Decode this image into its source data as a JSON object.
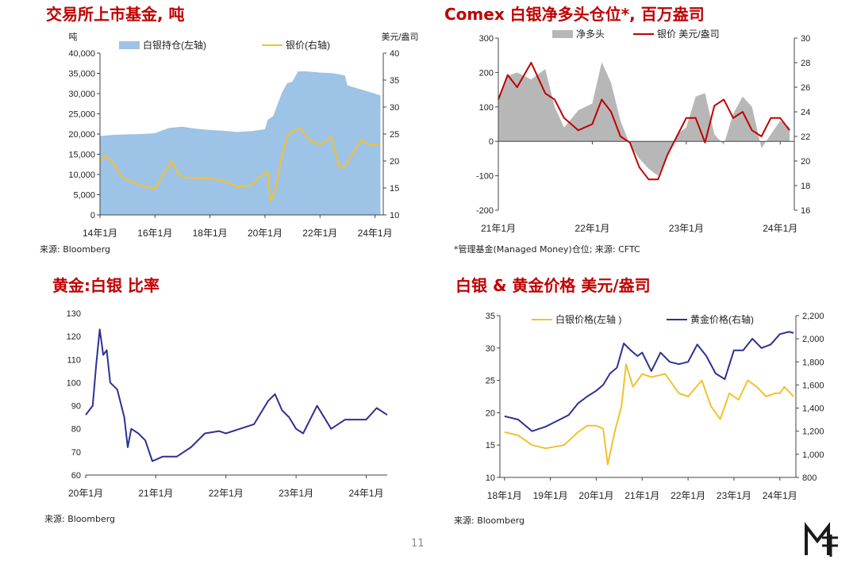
{
  "page_number": "11",
  "panels": [
    {
      "title": "交易所上市基金, 吨",
      "note": "来源: Bloomberg",
      "chart_data": {
        "type": "area",
        "left_unit": "吨",
        "right_unit": "美元/盎司",
        "x_ticks": [
          "14年1月",
          "16年1月",
          "18年1月",
          "20年1月",
          "22年1月",
          "24年1月"
        ],
        "y_left_ticks": [
          "0",
          "5,000",
          "10,000",
          "15,000",
          "20,000",
          "25,000",
          "30,000",
          "35,000",
          "40,000"
        ],
        "y_right_ticks": [
          "10",
          "15",
          "20",
          "25",
          "30",
          "35",
          "40"
        ],
        "ylim_left": [
          0,
          40000
        ],
        "ylim_right": [
          10,
          40
        ],
        "legend_position": "top",
        "series": [
          {
            "name": "白银持仓(左轴)",
            "type": "area",
            "axis": "left",
            "color": "#9dc3e6",
            "x": [
              2014.0,
              2014.5,
              2015.0,
              2015.5,
              2016.0,
              2016.5,
              2017.0,
              2017.5,
              2018.0,
              2018.5,
              2019.0,
              2019.5,
              2020.0,
              2020.1,
              2020.3,
              2020.6,
              2020.8,
              2021.0,
              2021.2,
              2021.5,
              2022.0,
              2022.5,
              2022.9,
              2023.0,
              2023.5,
              2024.0,
              2024.2
            ],
            "values": [
              19500,
              19800,
              19900,
              20000,
              20200,
              21500,
              21800,
              21300,
              21000,
              20800,
              20500,
              20700,
              21200,
              23500,
              24500,
              30000,
              32500,
              33000,
              35500,
              35500,
              35200,
              35000,
              34500,
              32000,
              31000,
              30000,
              29500
            ]
          },
          {
            "name": "银价(右轴)",
            "type": "line",
            "axis": "right",
            "color": "#f2c12e",
            "x": [
              2014.0,
              2014.2,
              2014.5,
              2014.8,
              2015.0,
              2015.5,
              2016.0,
              2016.3,
              2016.6,
              2016.8,
              2017.0,
              2017.5,
              2018.0,
              2018.5,
              2019.0,
              2019.5,
              2019.9,
              2020.1,
              2020.2,
              2020.4,
              2020.6,
              2020.8,
              2021.0,
              2021.3,
              2021.6,
              2022.0,
              2022.4,
              2022.7,
              2022.9,
              2023.2,
              2023.5,
              2023.8,
              2024.0,
              2024.2
            ],
            "values": [
              20,
              21,
              19.5,
              17,
              16.5,
              15.5,
              14.8,
              17.5,
              20,
              18,
              17,
              16.8,
              16.8,
              16.3,
              15.2,
              15.5,
              17.5,
              18,
              12.5,
              15,
              20.5,
              24.5,
              25.5,
              26,
              24,
              23,
              24.5,
              19,
              19,
              21.5,
              24,
              23,
              23,
              23
            ]
          }
        ]
      }
    },
    {
      "title": "Comex 白银净多头仓位*, 百万盎司",
      "note": "*管理基金(Managed Money)仓位;   来源: CFTC",
      "chart_data": {
        "type": "area",
        "x_ticks": [
          "21年1月",
          "22年1月",
          "23年1月",
          "24年1月"
        ],
        "y_left_ticks": [
          "-200",
          "-100",
          "0",
          "100",
          "200",
          "300"
        ],
        "y_right_ticks": [
          "16",
          "18",
          "20",
          "22",
          "24",
          "26",
          "28",
          "30"
        ],
        "ylim_left": [
          -200,
          300
        ],
        "ylim_right": [
          16,
          30
        ],
        "legend_position": "top",
        "series": [
          {
            "name": "净多头",
            "type": "area",
            "axis": "left",
            "color": "#b7b7b7",
            "x": [
              2021.0,
              2021.1,
              2021.2,
              2021.35,
              2021.5,
              2021.6,
              2021.7,
              2021.85,
              2022.0,
              2022.1,
              2022.2,
              2022.3,
              2022.4,
              2022.5,
              2022.6,
              2022.7,
              2022.8,
              2022.9,
              2023.0,
              2023.1,
              2023.2,
              2023.3,
              2023.4,
              2023.5,
              2023.6,
              2023.7,
              2023.8,
              2023.9,
              2024.0,
              2024.1
            ],
            "values": [
              130,
              190,
              200,
              180,
              210,
              100,
              40,
              90,
              110,
              230,
              170,
              60,
              -10,
              -50,
              -80,
              -100,
              -40,
              20,
              40,
              130,
              140,
              20,
              -10,
              80,
              130,
              100,
              -20,
              20,
              60,
              40
            ]
          },
          {
            "name": "银价 美元/盎司",
            "type": "line",
            "axis": "right",
            "color": "#c00000",
            "x": [
              2021.0,
              2021.1,
              2021.2,
              2021.35,
              2021.5,
              2021.6,
              2021.7,
              2021.85,
              2022.0,
              2022.1,
              2022.2,
              2022.3,
              2022.4,
              2022.5,
              2022.6,
              2022.7,
              2022.8,
              2022.9,
              2023.0,
              2023.1,
              2023.2,
              2023.3,
              2023.4,
              2023.5,
              2023.6,
              2023.7,
              2023.8,
              2023.9,
              2024.0,
              2024.1
            ],
            "values": [
              25,
              27,
              26,
              28,
              25.5,
              25,
              23.5,
              22.5,
              23,
              25,
              24,
              22,
              21.5,
              19.5,
              18.5,
              18.5,
              20.5,
              22,
              23.5,
              23.5,
              21.5,
              24.5,
              25,
              23.5,
              24,
              22.5,
              22,
              23.5,
              23.5,
              22.5
            ]
          }
        ]
      }
    },
    {
      "title": "黄金:白银 比率",
      "note": "来源: Bloomberg",
      "chart_data": {
        "type": "line",
        "x_ticks": [
          "20年1月",
          "21年1月",
          "22年1月",
          "23年1月",
          "24年1月"
        ],
        "y_left_ticks": [
          "60",
          "70",
          "80",
          "90",
          "100",
          "110",
          "120",
          "130"
        ],
        "ylim_left": [
          60,
          130
        ],
        "series": [
          {
            "name": "",
            "color": "#2e3191",
            "x": [
              2020.0,
              2020.1,
              2020.15,
              2020.2,
              2020.25,
              2020.3,
              2020.35,
              2020.45,
              2020.55,
              2020.6,
              2020.65,
              2020.75,
              2020.85,
              2020.95,
              2021.1,
              2021.3,
              2021.5,
              2021.7,
              2021.9,
              2022.0,
              2022.2,
              2022.4,
              2022.6,
              2022.7,
              2022.8,
              2022.9,
              2023.0,
              2023.1,
              2023.3,
              2023.5,
              2023.7,
              2023.9,
              2024.0,
              2024.15,
              2024.3
            ],
            "values": [
              86,
              90,
              108,
              123,
              112,
              114,
              100,
              97,
              85,
              72,
              80,
              78,
              75,
              66,
              68,
              68,
              72,
              78,
              79,
              78,
              80,
              82,
              92,
              95,
              88,
              85,
              80,
              78,
              90,
              80,
              84,
              84,
              84,
              89,
              86
            ]
          }
        ]
      }
    },
    {
      "title": "白银 & 黄金价格 美元/盎司",
      "note": "来源: Bloomberg",
      "chart_data": {
        "type": "line",
        "x_ticks": [
          "18年1月",
          "19年1月",
          "20年1月",
          "21年1月",
          "22年1月",
          "23年1月",
          "24年1月"
        ],
        "y_left_ticks": [
          "10",
          "15",
          "20",
          "25",
          "30",
          "35"
        ],
        "y_right_ticks": [
          "800",
          "1,000",
          "1,200",
          "1,400",
          "1,600",
          "1,800",
          "2,000",
          "2,200"
        ],
        "ylim_left": [
          10,
          35
        ],
        "ylim_right": [
          800,
          2200
        ],
        "legend_position": "top",
        "series": [
          {
            "name": "白银价格(左轴 )",
            "axis": "left",
            "color": "#f2c12e",
            "x": [
              2018.0,
              2018.3,
              2018.6,
              2018.9,
              2019.3,
              2019.6,
              2019.8,
              2020.0,
              2020.15,
              2020.25,
              2020.4,
              2020.55,
              2020.65,
              2020.8,
              2021.0,
              2021.2,
              2021.5,
              2021.8,
              2022.0,
              2022.3,
              2022.5,
              2022.7,
              2022.9,
              2023.1,
              2023.3,
              2023.5,
              2023.7,
              2023.9,
              2024.0,
              2024.1,
              2024.3
            ],
            "values": [
              17,
              16.5,
              15,
              14.5,
              15,
              17,
              18,
              18,
              17.5,
              12,
              17,
              21,
              27.5,
              24,
              26,
              25.5,
              26,
              23,
              22.5,
              25,
              21,
              19,
              23,
              22,
              25,
              24,
              22.5,
              23,
              23,
              24,
              22.5
            ]
          },
          {
            "name": "黄金价格(右轴)",
            "axis": "right",
            "color": "#2e3191",
            "x": [
              2018.0,
              2018.3,
              2018.6,
              2018.9,
              2019.2,
              2019.4,
              2019.6,
              2019.8,
              2020.0,
              2020.15,
              2020.3,
              2020.45,
              2020.6,
              2020.75,
              2020.9,
              2021.0,
              2021.2,
              2021.4,
              2021.6,
              2021.8,
              2022.0,
              2022.2,
              2022.4,
              2022.6,
              2022.8,
              2023.0,
              2023.2,
              2023.4,
              2023.6,
              2023.8,
              2024.0,
              2024.2,
              2024.3
            ],
            "values": [
              1330,
              1300,
              1200,
              1240,
              1300,
              1340,
              1440,
              1500,
              1550,
              1600,
              1700,
              1750,
              1960,
              1900,
              1850,
              1880,
              1720,
              1880,
              1800,
              1780,
              1800,
              1950,
              1850,
              1700,
              1650,
              1900,
              1900,
              2000,
              1920,
              1950,
              2040,
              2060,
              2050
            ]
          }
        ]
      }
    }
  ]
}
